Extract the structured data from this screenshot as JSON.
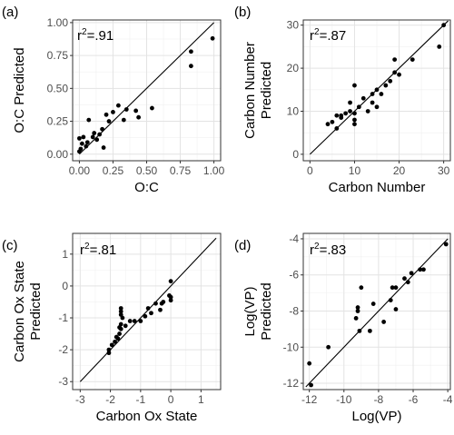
{
  "chart_data": [
    {
      "type": "scatter",
      "panel_label": "(a)",
      "annotation": "r2=.91",
      "xlabel": "O:C",
      "ylabel": [
        "O:C Predicted"
      ],
      "xlim": [
        -0.05,
        1.05
      ],
      "ylim": [
        -0.05,
        1.02
      ],
      "xticks": [
        0.0,
        0.25,
        0.5,
        0.75,
        1.0
      ],
      "xtick_labels": [
        "0.00",
        "0.25",
        "0.50",
        "0.75",
        "1.00"
      ],
      "yticks": [
        0.0,
        0.25,
        0.5,
        0.75,
        1.0
      ],
      "ytick_labels": [
        "0.00",
        "0.25",
        "0.50",
        "0.75",
        "1.00"
      ],
      "grid": true,
      "identity_line": [
        0.0,
        1.0
      ],
      "points": [
        [
          0.0,
          0.02
        ],
        [
          0.01,
          0.04
        ],
        [
          0.02,
          0.08
        ],
        [
          0.0,
          0.12
        ],
        [
          0.03,
          0.13
        ],
        [
          0.05,
          0.06
        ],
        [
          0.06,
          0.09
        ],
        [
          0.07,
          0.26
        ],
        [
          0.1,
          0.13
        ],
        [
          0.11,
          0.16
        ],
        [
          0.13,
          0.11
        ],
        [
          0.15,
          0.15
        ],
        [
          0.17,
          0.19
        ],
        [
          0.18,
          0.05
        ],
        [
          0.2,
          0.3
        ],
        [
          0.22,
          0.25
        ],
        [
          0.25,
          0.32
        ],
        [
          0.29,
          0.37
        ],
        [
          0.33,
          0.26
        ],
        [
          0.35,
          0.34
        ],
        [
          0.42,
          0.33
        ],
        [
          0.44,
          0.28
        ],
        [
          0.54,
          0.35
        ],
        [
          0.83,
          0.67
        ],
        [
          0.83,
          0.78
        ],
        [
          0.99,
          0.88
        ]
      ]
    },
    {
      "type": "scatter",
      "panel_label": "(b)",
      "annotation": "r2=.87",
      "xlabel": "Carbon Number",
      "ylabel": [
        "Carbon Number",
        "Predicted"
      ],
      "xlim": [
        -1.5,
        31.5
      ],
      "ylim": [
        -1.5,
        31.2
      ],
      "xticks": [
        0,
        10,
        20,
        30
      ],
      "xtick_labels": [
        "0",
        "10",
        "20",
        "30"
      ],
      "yticks": [
        0,
        10,
        20,
        30
      ],
      "ytick_labels": [
        "0",
        "10",
        "20",
        "30"
      ],
      "grid": true,
      "identity_line": [
        0,
        31
      ],
      "points": [
        [
          4,
          7
        ],
        [
          5,
          7.5
        ],
        [
          6,
          9
        ],
        [
          6,
          6
        ],
        [
          7,
          9
        ],
        [
          7,
          8.5
        ],
        [
          8,
          9.5
        ],
        [
          9,
          12
        ],
        [
          9,
          10
        ],
        [
          10,
          9.5
        ],
        [
          10,
          8
        ],
        [
          10,
          7
        ],
        [
          10,
          16
        ],
        [
          11,
          11
        ],
        [
          12,
          13
        ],
        [
          13,
          10
        ],
        [
          14,
          14
        ],
        [
          14,
          12
        ],
        [
          15,
          11
        ],
        [
          15,
          15
        ],
        [
          16,
          14
        ],
        [
          17,
          16
        ],
        [
          18,
          17
        ],
        [
          19,
          22
        ],
        [
          19,
          19
        ],
        [
          20,
          18.5
        ],
        [
          23,
          22
        ],
        [
          29,
          25
        ],
        [
          30,
          30
        ]
      ]
    },
    {
      "type": "scatter",
      "panel_label": "(c)",
      "annotation": "r2=.81",
      "xlabel": "Carbon Ox State",
      "ylabel": [
        "Carbon Ox State",
        "Predicted"
      ],
      "xlim": [
        -3.25,
        1.65
      ],
      "ylim": [
        -3.25,
        1.65
      ],
      "xticks": [
        -3,
        -2,
        -1,
        0,
        1
      ],
      "xtick_labels": [
        "-3",
        "-2",
        "-1",
        "0",
        "1"
      ],
      "yticks": [
        -3,
        -2,
        -1,
        0,
        1
      ],
      "ytick_labels": [
        "-3",
        "-2",
        "-1",
        "0",
        "1"
      ],
      "grid": true,
      "identity_line": [
        -3,
        1.5
      ],
      "points": [
        [
          -2.05,
          -2.0
        ],
        [
          -2.05,
          -2.1
        ],
        [
          -1.95,
          -1.85
        ],
        [
          -1.85,
          -1.75
        ],
        [
          -1.8,
          -1.6
        ],
        [
          -1.75,
          -1.65
        ],
        [
          -1.7,
          -1.5
        ],
        [
          -1.7,
          -1.3
        ],
        [
          -1.65,
          -1.35
        ],
        [
          -1.65,
          -1.2
        ],
        [
          -1.65,
          -0.9
        ],
        [
          -1.65,
          -0.8
        ],
        [
          -1.65,
          -0.7
        ],
        [
          -1.6,
          -1.0
        ],
        [
          -1.5,
          -1.25
        ],
        [
          -1.35,
          -1.1
        ],
        [
          -1.2,
          -1.1
        ],
        [
          -1.0,
          -1.1
        ],
        [
          -0.85,
          -0.95
        ],
        [
          -0.75,
          -0.7
        ],
        [
          -0.65,
          -0.85
        ],
        [
          -0.5,
          -0.55
        ],
        [
          -0.35,
          -0.75
        ],
        [
          -0.3,
          -0.55
        ],
        [
          -0.25,
          -0.5
        ],
        [
          -0.05,
          -0.3
        ],
        [
          0.0,
          -0.45
        ],
        [
          0.0,
          -0.35
        ],
        [
          0.0,
          0.15
        ]
      ]
    },
    {
      "type": "scatter",
      "panel_label": "(d)",
      "annotation": "r2=.83",
      "xlabel": "Log(VP)",
      "ylabel": [
        "Log(VP)",
        "Predicted"
      ],
      "xlim": [
        -12.35,
        -3.85
      ],
      "ylim": [
        -12.35,
        -3.7
      ],
      "xticks": [
        -12,
        -10,
        -8,
        -6,
        -4
      ],
      "xtick_labels": [
        "-12",
        "-10",
        "-8",
        "-6",
        "-4"
      ],
      "yticks": [
        -12,
        -10,
        -8,
        -6,
        -4
      ],
      "ytick_labels": [
        "-12",
        "-10",
        "-8",
        "-6",
        "-4"
      ],
      "grid": true,
      "identity_line": [
        -12.2,
        -4.0
      ],
      "points": [
        [
          -12.0,
          -10.9
        ],
        [
          -11.9,
          -12.1
        ],
        [
          -10.9,
          -10.0
        ],
        [
          -9.3,
          -8.4
        ],
        [
          -9.2,
          -7.8
        ],
        [
          -9.2,
          -8.0
        ],
        [
          -9.0,
          -6.7
        ],
        [
          -9.1,
          -9.1
        ],
        [
          -8.5,
          -9.1
        ],
        [
          -8.3,
          -7.6
        ],
        [
          -7.7,
          -8.6
        ],
        [
          -7.3,
          -7.4
        ],
        [
          -7.2,
          -6.7
        ],
        [
          -7.0,
          -6.7
        ],
        [
          -7.0,
          -7.9
        ],
        [
          -6.5,
          -6.2
        ],
        [
          -6.3,
          -6.4
        ],
        [
          -6.1,
          -5.9
        ],
        [
          -5.6,
          -5.7
        ],
        [
          -5.4,
          -5.7
        ],
        [
          -4.1,
          -4.3
        ]
      ]
    }
  ]
}
